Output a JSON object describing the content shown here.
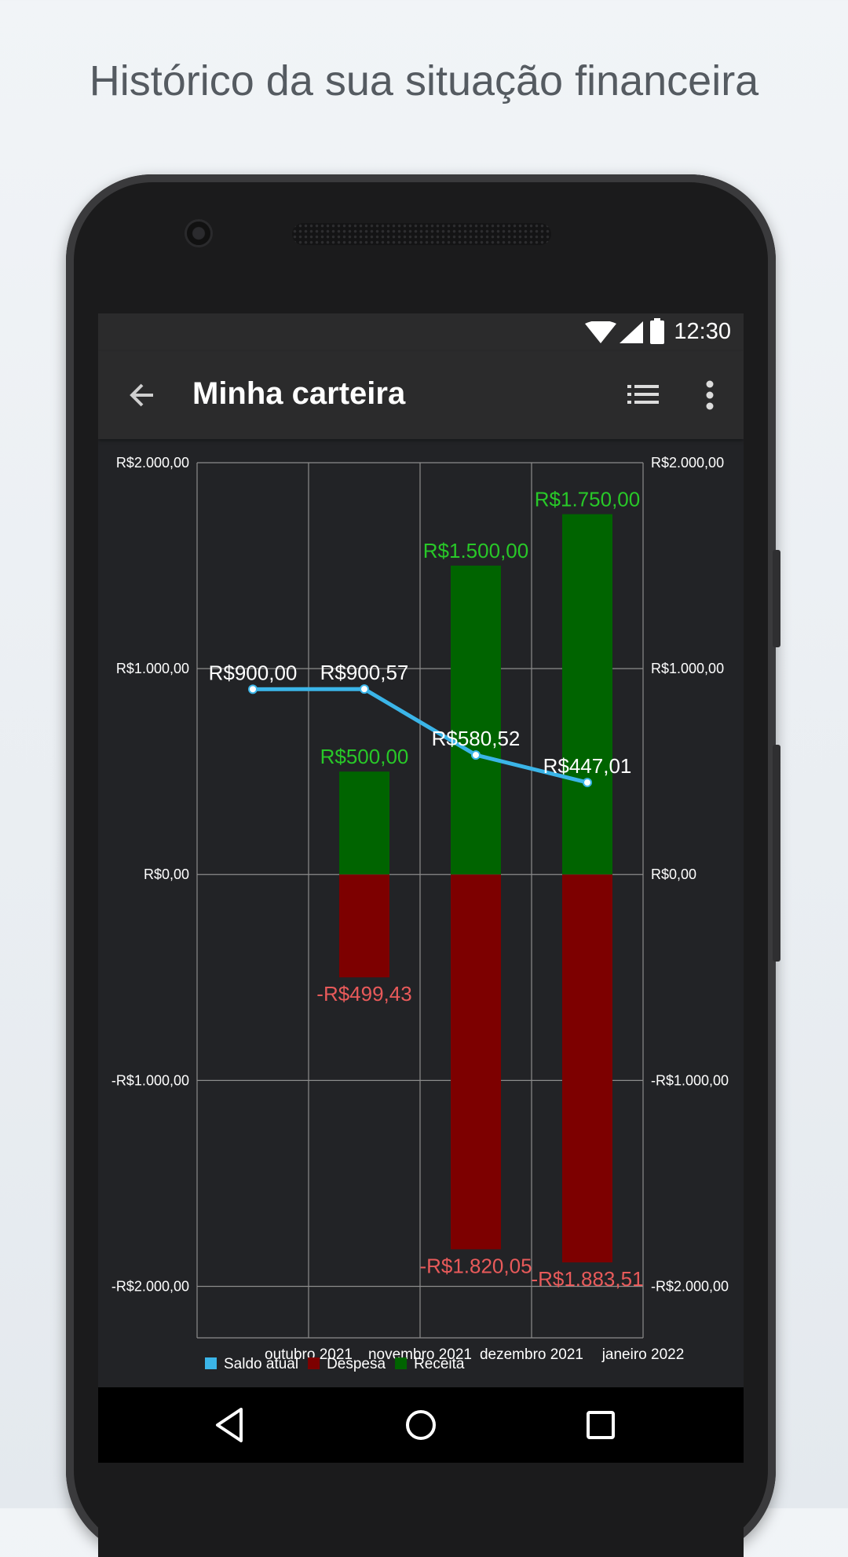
{
  "headline": "Histórico da sua situação financeira",
  "status_bar": {
    "time": "12:30"
  },
  "app_bar": {
    "title": "Minha carteira"
  },
  "icons": {
    "back": "arrow-back-icon",
    "list": "list-icon",
    "more": "more-vert-icon",
    "wifi": "wifi-icon",
    "signal": "signal-icon",
    "battery": "battery-icon",
    "nav_back": "nav-back-icon",
    "nav_home": "nav-home-icon",
    "nav_recents": "nav-recents-icon"
  },
  "colors": {
    "saldo": "#3bb5e8",
    "despesa": "#7d0000",
    "receita": "#006400",
    "receita_label": "#28c828",
    "despesa_label": "#e85a5a",
    "grid": "#8c8c8c",
    "axis_text": "#ffffff"
  },
  "chart_data": {
    "type": "bar",
    "categories": [
      "outubro 2021",
      "novembro 2021",
      "dezembro 2021",
      "janeiro 2022"
    ],
    "ylim": [
      -2250,
      2000
    ],
    "y_ticks": [
      2000,
      1000,
      0,
      -1000,
      -2000
    ],
    "y_tick_labels": [
      "R$2.000,00",
      "R$1.000,00",
      "R$0,00",
      "-R$1.000,00",
      "-R$2.000,00"
    ],
    "grid": true,
    "legend_position": "bottom-left",
    "series": [
      {
        "name": "Saldo atual",
        "kind": "line",
        "x": [
          -0.5,
          0.5,
          1.5,
          2.5
        ],
        "values": [
          900.0,
          900.57,
          580.52,
          447.01
        ],
        "labels": [
          "R$900,00",
          "R$900,57",
          "R$580,52",
          "R$447,01"
        ]
      },
      {
        "name": "Despesa",
        "kind": "bar",
        "x": [
          0.5,
          1.5,
          2.5
        ],
        "values": [
          -499.43,
          -1820.05,
          -1883.51
        ],
        "labels": [
          "-R$499,43",
          "-R$1.820,05",
          "-R$1.883,51"
        ]
      },
      {
        "name": "Receita",
        "kind": "bar",
        "x": [
          0.5,
          1.5,
          2.5
        ],
        "values": [
          500.0,
          1500.0,
          1750.0
        ],
        "labels": [
          "R$500,00",
          "R$1.500,00",
          "R$1.750,00"
        ]
      }
    ]
  }
}
